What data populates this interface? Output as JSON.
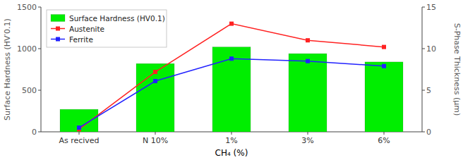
{
  "chart_data": {
    "type": "bar",
    "categories": [
      "As recived",
      "N 10%",
      "1%",
      "3%",
      "6%"
    ],
    "xlabel": "CH₄ (%)",
    "ylabel": "Surface Hardness (HV′0.1)",
    "y2label": "S-Phase Thickness (μm)",
    "ylim": [
      0,
      1500
    ],
    "yticks": [
      0,
      500,
      1000,
      1500
    ],
    "y2lim": [
      0,
      15
    ],
    "y2ticks": [
      0,
      5,
      10,
      15
    ],
    "grid": false,
    "legend": "upper left",
    "series": [
      {
        "name": "Surface Hardness (HV0.1)",
        "type": "bar",
        "color": "#00ee00",
        "values": [
          270,
          820,
          1020,
          940,
          840
        ]
      },
      {
        "name": "Austenite",
        "type": "line",
        "marker": "square",
        "axis": "y2",
        "color": "#ff2222",
        "values": [
          0.3,
          7.2,
          13.0,
          11.0,
          10.2
        ]
      },
      {
        "name": "Ferrite",
        "type": "line",
        "marker": "square",
        "axis": "y2",
        "color": "#2222ff",
        "values": [
          0.5,
          6.1,
          8.8,
          8.5,
          7.9
        ]
      }
    ]
  }
}
